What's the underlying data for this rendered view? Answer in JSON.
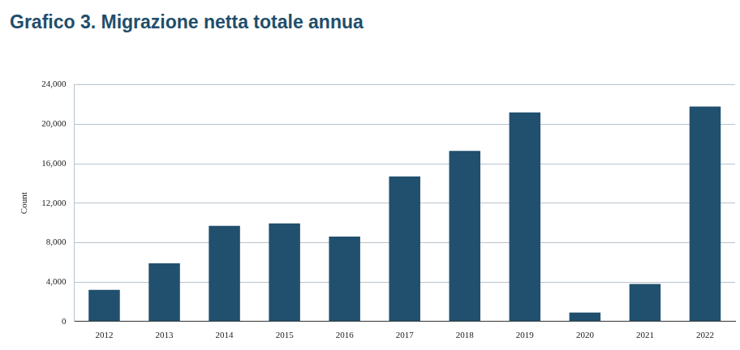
{
  "chart_data": {
    "type": "bar",
    "title": "Grafico 3. Migrazione netta totale annua",
    "y_label": "Count",
    "categories": [
      "2012",
      "2013",
      "2014",
      "2015",
      "2016",
      "2017",
      "2018",
      "2019",
      "2020",
      "2021",
      "2022"
    ],
    "values": [
      3200,
      5900,
      9700,
      9950,
      8600,
      14700,
      17300,
      21200,
      900,
      3800,
      21800
    ],
    "color": "#21506e",
    "ylim": [
      0,
      24000
    ],
    "yticks": [
      0,
      {
        "value": 4000,
        "label": "4,000"
      },
      {
        "value": 8000,
        "label": "8,000"
      },
      {
        "value": 12000,
        "label": "12,000"
      },
      {
        "value": 16000,
        "label": "16,000"
      },
      {
        "value": 20000,
        "label": "20,000"
      },
      {
        "value": 24000,
        "label": "24,000"
      }
    ],
    "grid": true
  }
}
